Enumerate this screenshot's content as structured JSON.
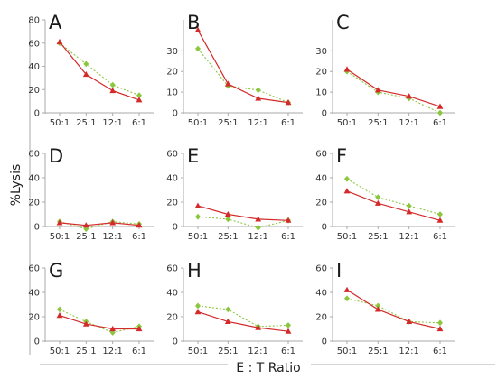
{
  "figure": {
    "ylabel": "%Lysis",
    "xlabel": "E : T Ratio",
    "colors": {
      "red_series": "#d42a2a",
      "green_series": "#8cc63f",
      "axis": "#aaaaaa",
      "text": "#333333"
    },
    "markers": {
      "red_series": "triangle",
      "green_series": "diamond"
    }
  },
  "chart_data": [
    {
      "type": "line",
      "panel": "A",
      "categories": [
        "50:1",
        "25:1",
        "12:1",
        "6:1"
      ],
      "ylim": [
        0,
        80
      ],
      "yticks": [
        0,
        20,
        40,
        60,
        80
      ],
      "series": [
        {
          "style": "red-solid",
          "values": [
            61,
            33,
            19,
            11
          ]
        },
        {
          "style": "green-dotted",
          "values": [
            60,
            42,
            24,
            15
          ]
        }
      ]
    },
    {
      "type": "line",
      "panel": "B",
      "categories": [
        "50:1",
        "25:1",
        "12:1",
        "6:1"
      ],
      "ylim": [
        0,
        45
      ],
      "yticks": [
        0,
        10,
        20,
        30
      ],
      "series": [
        {
          "style": "red-solid",
          "values": [
            40,
            14,
            7,
            5
          ]
        },
        {
          "style": "green-dotted",
          "values": [
            31,
            13,
            11,
            5
          ]
        }
      ]
    },
    {
      "type": "line",
      "panel": "C",
      "categories": [
        "50:1",
        "25:1",
        "12:1",
        "6:1"
      ],
      "ylim": [
        0,
        45
      ],
      "yticks": [
        0,
        10,
        20,
        30
      ],
      "series": [
        {
          "style": "red-solid",
          "values": [
            21,
            11,
            8,
            3
          ]
        },
        {
          "style": "green-dotted",
          "values": [
            20,
            10,
            7,
            0
          ]
        }
      ]
    },
    {
      "type": "line",
      "panel": "D",
      "categories": [
        "50:1",
        "25:1",
        "12:1",
        "6:1"
      ],
      "ylim": [
        0,
        60
      ],
      "yticks": [
        0,
        20,
        40,
        60
      ],
      "series": [
        {
          "style": "red-solid",
          "values": [
            3,
            1,
            3,
            1
          ]
        },
        {
          "style": "green-dotted",
          "values": [
            4,
            -2,
            4,
            2
          ]
        }
      ]
    },
    {
      "type": "line",
      "panel": "E",
      "categories": [
        "50:1",
        "25:1",
        "12:1",
        "6:1"
      ],
      "ylim": [
        0,
        60
      ],
      "yticks": [
        0,
        20,
        40,
        60
      ],
      "series": [
        {
          "style": "red-solid",
          "values": [
            17,
            10,
            6,
            5
          ]
        },
        {
          "style": "green-dotted",
          "values": [
            8,
            6,
            -1,
            5
          ]
        }
      ]
    },
    {
      "type": "line",
      "panel": "F",
      "categories": [
        "50:1",
        "25:1",
        "12:1",
        "6:1"
      ],
      "ylim": [
        0,
        60
      ],
      "yticks": [
        0,
        20,
        40,
        60
      ],
      "series": [
        {
          "style": "red-solid",
          "values": [
            29,
            19,
            12,
            5
          ]
        },
        {
          "style": "green-dotted",
          "values": [
            39,
            24,
            17,
            10
          ]
        }
      ]
    },
    {
      "type": "line",
      "panel": "G",
      "categories": [
        "50:1",
        "25:1",
        "12:1",
        "6:1"
      ],
      "ylim": [
        0,
        60
      ],
      "yticks": [
        0,
        20,
        40,
        60
      ],
      "series": [
        {
          "style": "red-solid",
          "values": [
            21,
            14,
            10,
            10
          ]
        },
        {
          "style": "green-dotted",
          "values": [
            26,
            16,
            7,
            12
          ]
        }
      ]
    },
    {
      "type": "line",
      "panel": "H",
      "categories": [
        "50:1",
        "25:1",
        "12:1",
        "6:1"
      ],
      "ylim": [
        0,
        60
      ],
      "yticks": [
        0,
        20,
        40,
        60
      ],
      "series": [
        {
          "style": "red-solid",
          "values": [
            24,
            16,
            11,
            8
          ]
        },
        {
          "style": "green-dotted",
          "values": [
            29,
            26,
            12,
            13
          ]
        }
      ]
    },
    {
      "type": "line",
      "panel": "I",
      "categories": [
        "50:1",
        "25:1",
        "12:1",
        "6:1"
      ],
      "ylim": [
        0,
        60
      ],
      "yticks": [
        0,
        20,
        40,
        60
      ],
      "series": [
        {
          "style": "red-solid",
          "values": [
            42,
            26,
            16,
            10
          ]
        },
        {
          "style": "green-dotted",
          "values": [
            35,
            29,
            16,
            15
          ]
        }
      ]
    }
  ]
}
